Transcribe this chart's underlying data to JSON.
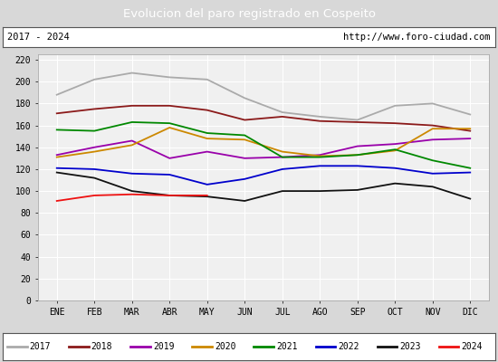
{
  "title": "Evolucion del paro registrado en Cospeito",
  "subtitle_left": "2017 - 2024",
  "subtitle_right": "http://www.foro-ciudad.com",
  "title_bg": "#4a8fd4",
  "months": [
    "ENE",
    "FEB",
    "MAR",
    "ABR",
    "MAY",
    "JUN",
    "JUL",
    "AGO",
    "SEP",
    "OCT",
    "NOV",
    "DIC"
  ],
  "series": {
    "2017": {
      "color": "#aaaaaa",
      "values": [
        188,
        202,
        208,
        204,
        202,
        185,
        172,
        168,
        165,
        178,
        180,
        170
      ]
    },
    "2018": {
      "color": "#8b1a1a",
      "values": [
        171,
        175,
        178,
        178,
        174,
        165,
        168,
        164,
        163,
        162,
        160,
        155
      ]
    },
    "2019": {
      "color": "#9900aa",
      "values": [
        133,
        140,
        146,
        130,
        136,
        130,
        131,
        133,
        141,
        143,
        147,
        148
      ]
    },
    "2020": {
      "color": "#cc8800",
      "values": [
        131,
        136,
        142,
        158,
        148,
        147,
        136,
        132,
        133,
        137,
        157,
        157
      ]
    },
    "2021": {
      "color": "#008800",
      "values": [
        156,
        155,
        163,
        162,
        153,
        151,
        131,
        131,
        133,
        138,
        128,
        121
      ]
    },
    "2022": {
      "color": "#0000cc",
      "values": [
        121,
        120,
        116,
        115,
        106,
        111,
        120,
        123,
        123,
        121,
        116,
        117
      ]
    },
    "2023": {
      "color": "#111111",
      "values": [
        117,
        112,
        100,
        96,
        95,
        91,
        100,
        100,
        101,
        107,
        104,
        93
      ]
    },
    "2024": {
      "color": "#ee1111",
      "values": [
        91,
        96,
        97,
        96,
        96,
        null,
        null,
        null,
        null,
        null,
        null,
        null
      ]
    }
  },
  "ylim": [
    0,
    225
  ],
  "yticks": [
    0,
    20,
    40,
    60,
    80,
    100,
    120,
    140,
    160,
    180,
    200,
    220
  ],
  "bg_color": "#d8d8d8",
  "plot_bg": "#f0f0f0",
  "grid_color": "#ffffff",
  "legend_order": [
    "2017",
    "2018",
    "2019",
    "2020",
    "2021",
    "2022",
    "2023",
    "2024"
  ]
}
